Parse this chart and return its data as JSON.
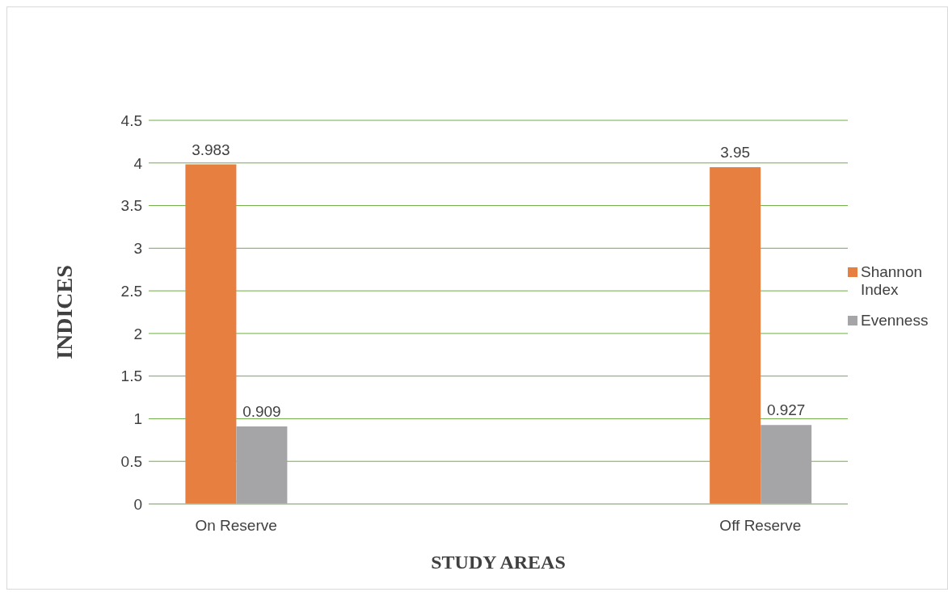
{
  "chart_data": {
    "type": "bar",
    "xlabel": "STUDY AREAS",
    "ylabel": "INDICES",
    "categories": [
      "On Reserve",
      null,
      null,
      "Off Reserve"
    ],
    "series": [
      {
        "name": "Shannon Index",
        "color": "#e67f3f",
        "values": [
          3.983,
          null,
          null,
          3.95
        ]
      },
      {
        "name": "Evenness",
        "color": "#a5a5a8",
        "values": [
          0.909,
          null,
          null,
          0.927
        ]
      }
    ],
    "ylim": [
      0,
      4.5
    ],
    "yticks": [
      0,
      0.5,
      1,
      1.5,
      2,
      2.5,
      3,
      3.5,
      4,
      4.5
    ],
    "grid": "y",
    "legend": "right",
    "data_labels": true
  }
}
